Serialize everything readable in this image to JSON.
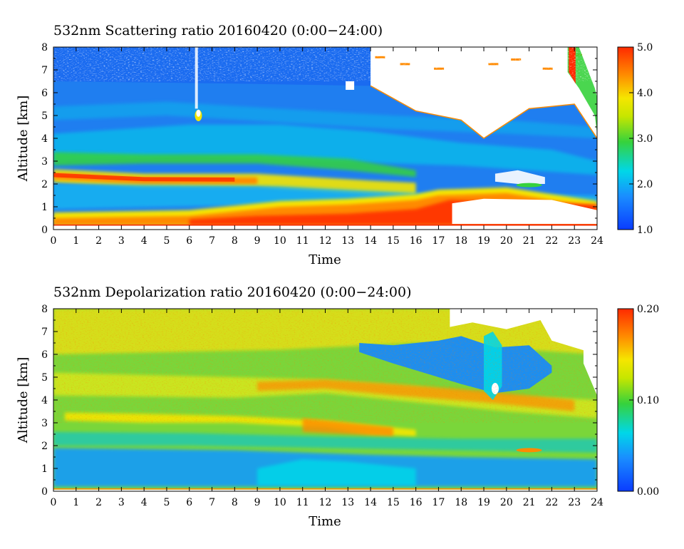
{
  "chart_data": [
    {
      "type": "heatmap",
      "title": "532nm Scattering ratio  20160420 (0:00−24:00)",
      "xlabel": "Time",
      "ylabel": "Altitude [km]",
      "xlim": [
        0,
        24
      ],
      "ylim": [
        0,
        8
      ],
      "x_ticks": [
        "0",
        "1",
        "2",
        "3",
        "4",
        "5",
        "6",
        "7",
        "8",
        "9",
        "10",
        "11",
        "12",
        "13",
        "14",
        "15",
        "16",
        "17",
        "18",
        "19",
        "20",
        "21",
        "22",
        "23",
        "24"
      ],
      "y_ticks": [
        "0",
        "1",
        "2",
        "3",
        "4",
        "5",
        "6",
        "7",
        "8"
      ],
      "colorbar": {
        "range": [
          1.0,
          5.0
        ],
        "tick_values": [
          1.0,
          2.0,
          3.0,
          4.0,
          5.0
        ],
        "tick_labels": [
          "1.0",
          "2.0",
          "3.0",
          "4.0",
          "5.0"
        ],
        "colormap": "rainbow"
      },
      "features": {
        "surface_line_km": 0.2,
        "boundary_layer_top_km_by_hour": [
          [
            0,
            0.5
          ],
          [
            6,
            0.6
          ],
          [
            8,
            0.8
          ],
          [
            10,
            1.0
          ],
          [
            13,
            1.1
          ],
          [
            16,
            1.3
          ],
          [
            17,
            1.5
          ],
          [
            20,
            1.6
          ],
          [
            24,
            1.0
          ]
        ],
        "elevated_layer_km": [
          [
            0,
            2.3
          ],
          [
            4,
            2.1
          ],
          [
            9,
            2.1
          ],
          [
            14,
            1.8
          ],
          [
            16,
            1.7
          ]
        ],
        "cloud_base_km_by_hour": [
          [
            14,
            6.3
          ],
          [
            16,
            5.2
          ],
          [
            18,
            4.8
          ],
          [
            19,
            4.0
          ],
          [
            21,
            5.3
          ],
          [
            23,
            5.5
          ],
          [
            24,
            4.0
          ]
        ]
      }
    },
    {
      "type": "heatmap",
      "title": "532nm Depolarization ratio  20160420 (0:00−24:00)",
      "xlabel": "Time",
      "ylabel": "Altitude [km]",
      "xlim": [
        0,
        24
      ],
      "ylim": [
        0,
        8
      ],
      "x_ticks": [
        "0",
        "1",
        "2",
        "3",
        "4",
        "5",
        "6",
        "7",
        "8",
        "9",
        "10",
        "11",
        "12",
        "13",
        "14",
        "15",
        "16",
        "17",
        "18",
        "19",
        "20",
        "21",
        "22",
        "23",
        "24"
      ],
      "y_ticks": [
        "0",
        "1",
        "2",
        "3",
        "4",
        "5",
        "6",
        "7",
        "8"
      ],
      "colorbar": {
        "range": [
          0.0,
          0.2
        ],
        "tick_values": [
          0.0,
          0.1,
          0.2
        ],
        "tick_labels": [
          "0.00",
          "0.10",
          "0.20"
        ],
        "colormap": "rainbow"
      },
      "features": {
        "low_layer_km": [
          0,
          2
        ],
        "dust_layer_km": [
          2,
          6
        ],
        "cloud_region_hours": [
          14,
          22
        ]
      }
    }
  ],
  "colors": {
    "low": "#0a3cff",
    "cyan": "#00d7e8",
    "green": "#36d23c",
    "yellow": "#f5e600",
    "orange": "#ff8a00",
    "red": "#ff2a00"
  }
}
